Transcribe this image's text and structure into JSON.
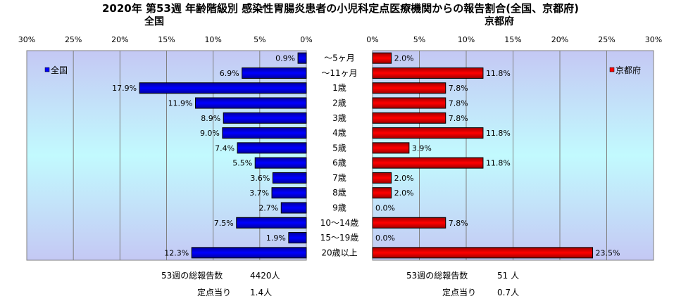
{
  "title": "2020年 第53週 年齢階級別 感染性胃腸炎患者の小児科定点医療機関からの報告割合(全国、京都府)",
  "chart_data": [
    {
      "type": "bar",
      "orientation": "horizontal",
      "direction": "leftward",
      "title": "全国",
      "legend": "全国",
      "legend_position": "top-left",
      "color": "#0000ff",
      "xlim": [
        0,
        30
      ],
      "ticks": [
        "30%",
        "25%",
        "20%",
        "15%",
        "10%",
        "5%",
        "0%"
      ],
      "values": [
        0.9,
        6.9,
        17.9,
        11.9,
        8.9,
        9.0,
        7.4,
        5.5,
        3.6,
        3.7,
        2.7,
        7.5,
        1.9,
        12.3
      ],
      "labels": [
        "0.9%",
        "6.9%",
        "17.9%",
        "11.9%",
        "8.9%",
        "9.0%",
        "7.4%",
        "5.5%",
        "3.6%",
        "3.7%",
        "2.7%",
        "7.5%",
        "1.9%",
        "12.3%"
      ]
    },
    {
      "type": "bar",
      "orientation": "horizontal",
      "direction": "rightward",
      "title": "京都府",
      "legend": "京都府",
      "legend_position": "top-right",
      "color": "#ff0000",
      "xlim": [
        0,
        30
      ],
      "ticks": [
        "0%",
        "5%",
        "10%",
        "15%",
        "20%",
        "25%",
        "30%"
      ],
      "values": [
        2.0,
        11.8,
        7.8,
        7.8,
        7.8,
        11.8,
        3.9,
        11.8,
        2.0,
        2.0,
        0.0,
        7.8,
        0.0,
        23.5
      ],
      "labels": [
        "2.0%",
        "11.8%",
        "7.8%",
        "7.8%",
        "7.8%",
        "11.8%",
        "3.9%",
        "11.8%",
        "2.0%",
        "2.0%",
        "0.0%",
        "7.8%",
        "0.0%",
        "23.5%"
      ]
    }
  ],
  "categories": [
    "～5ヶ月",
    "～11ヶ月",
    "1歳",
    "2歳",
    "3歳",
    "4歳",
    "5歳",
    "6歳",
    "7歳",
    "8歳",
    "9歳",
    "10～14歳",
    "15～19歳",
    "20歳以上"
  ],
  "footer": {
    "national": {
      "total_label": "53週の総報告数",
      "total_value": "4420人",
      "per_label": "定点当り",
      "per_value": "1.4人"
    },
    "kyoto": {
      "total_label": "53週の総報告数",
      "total_value": "51 人",
      "per_label": "定点当り",
      "per_value": "0.7人"
    }
  }
}
